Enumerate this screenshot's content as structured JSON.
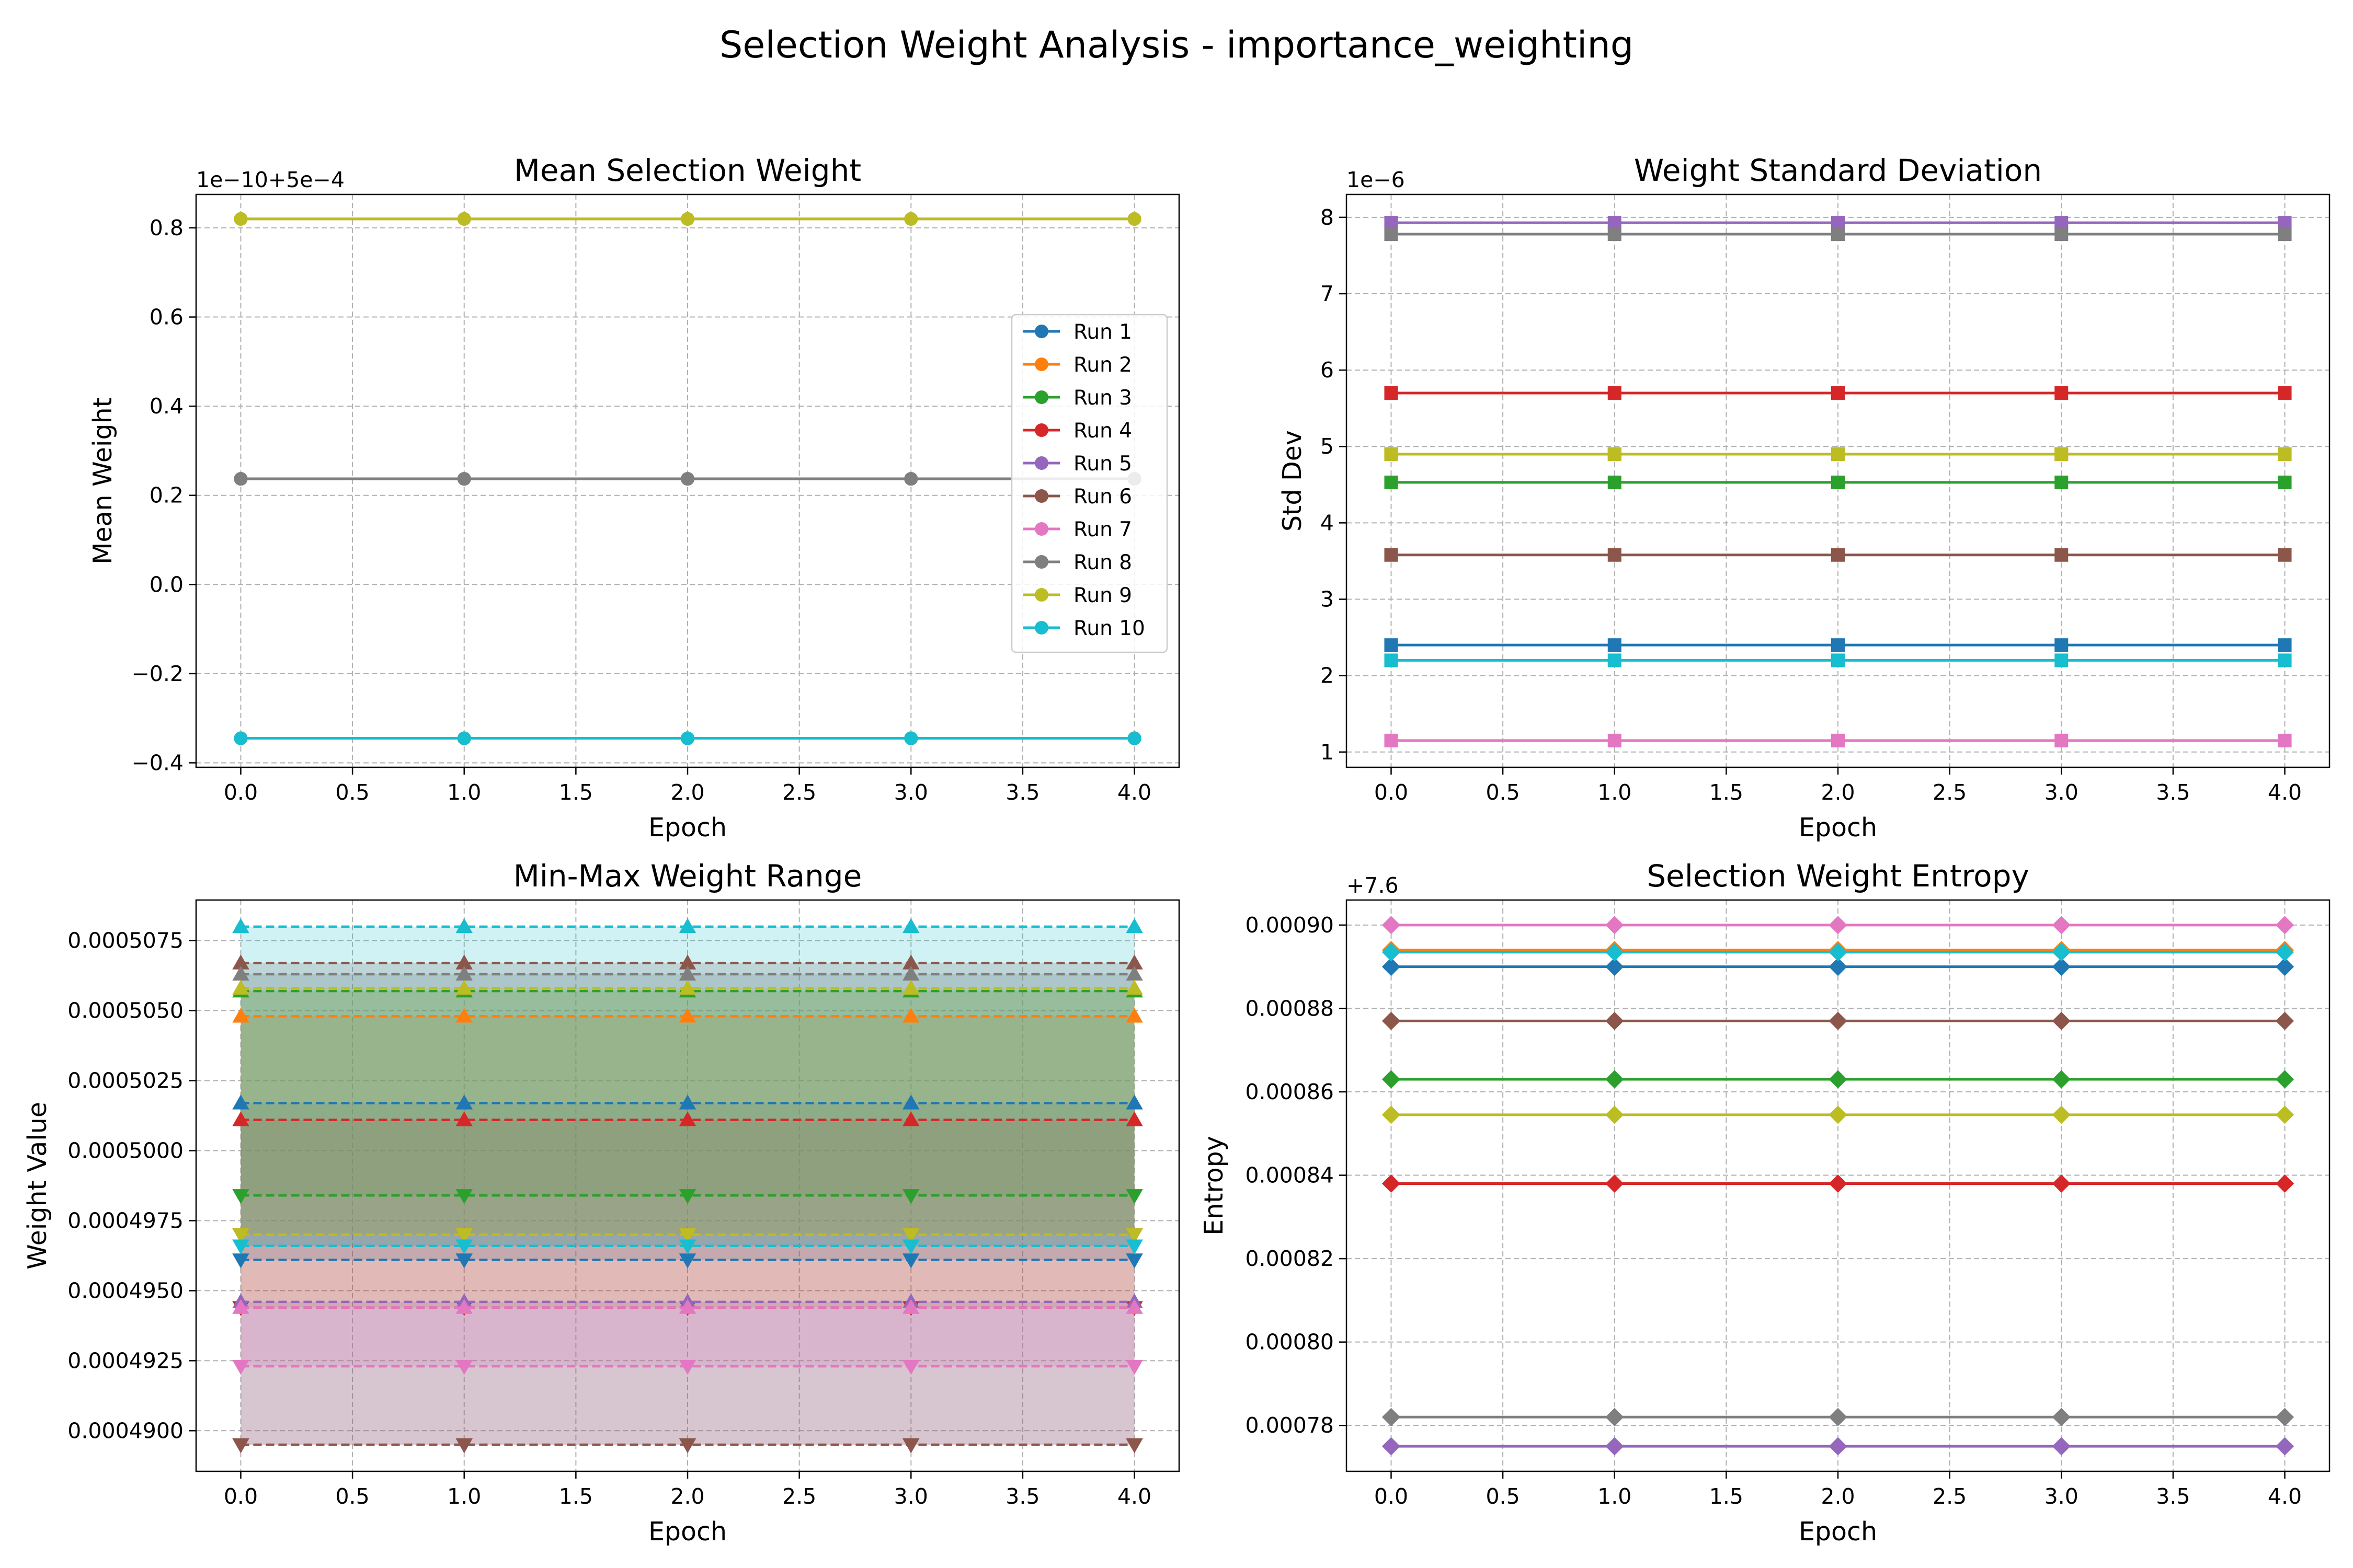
{
  "figure": {
    "title": "Selection Weight Analysis - importance_weighting"
  },
  "palette": [
    "#1f77b4",
    "#ff7f0e",
    "#2ca02c",
    "#d62728",
    "#9467bd",
    "#8c564b",
    "#e377c2",
    "#7f7f7f",
    "#bcbd22",
    "#17becf"
  ],
  "chart_data": [
    {
      "type": "line",
      "title": "Mean Selection Weight",
      "xlabel": "Epoch",
      "ylabel": "Mean Weight",
      "offset_text": "1e−10+5e−4",
      "marker": "circle",
      "x": [
        0,
        1,
        2,
        3,
        4
      ],
      "xticks": [
        "0.0",
        "0.5",
        "1.0",
        "1.5",
        "2.0",
        "2.5",
        "3.0",
        "3.5",
        "4.0"
      ],
      "yticks": [
        "−0.4",
        "−0.2",
        "0.0",
        "0.2",
        "0.4",
        "0.6",
        "0.8"
      ],
      "xlim": [
        -0.2,
        4.2
      ],
      "ylim": [
        -0.41,
        0.875
      ],
      "grid": true,
      "legend": "center-right",
      "series": [
        {
          "name": "Run 1",
          "values": [
            -0.345,
            -0.345,
            -0.345,
            -0.345,
            -0.345
          ]
        },
        {
          "name": "Run 2",
          "values": [
            0.82,
            0.82,
            0.82,
            0.82,
            0.82
          ]
        },
        {
          "name": "Run 3",
          "values": [
            -0.345,
            -0.345,
            -0.345,
            -0.345,
            -0.345
          ]
        },
        {
          "name": "Run 4",
          "values": [
            0.237,
            0.237,
            0.237,
            0.237,
            0.237
          ]
        },
        {
          "name": "Run 5",
          "values": [
            0.237,
            0.237,
            0.237,
            0.237,
            0.237
          ]
        },
        {
          "name": "Run 6",
          "values": [
            -0.345,
            -0.345,
            -0.345,
            -0.345,
            -0.345
          ]
        },
        {
          "name": "Run 7",
          "values": [
            0.82,
            0.82,
            0.82,
            0.82,
            0.82
          ]
        },
        {
          "name": "Run 8",
          "values": [
            0.237,
            0.237,
            0.237,
            0.237,
            0.237
          ]
        },
        {
          "name": "Run 9",
          "values": [
            0.82,
            0.82,
            0.82,
            0.82,
            0.82
          ]
        },
        {
          "name": "Run 10",
          "values": [
            -0.345,
            -0.345,
            -0.345,
            -0.345,
            -0.345
          ]
        }
      ]
    },
    {
      "type": "line",
      "title": "Weight Standard Deviation",
      "xlabel": "Epoch",
      "ylabel": "Std Dev",
      "offset_text": "1e−6",
      "marker": "square",
      "x": [
        0,
        1,
        2,
        3,
        4
      ],
      "xticks": [
        "0.0",
        "0.5",
        "1.0",
        "1.5",
        "2.0",
        "2.5",
        "3.0",
        "3.5",
        "4.0"
      ],
      "yticks": [
        "1",
        "2",
        "3",
        "4",
        "5",
        "6",
        "7",
        "8"
      ],
      "xlim": [
        -0.2,
        4.2
      ],
      "ylim": [
        0.8,
        8.3
      ],
      "grid": true,
      "series": [
        {
          "values": [
            2.4,
            2.4,
            2.4,
            2.4,
            2.4
          ]
        },
        {
          "values": [
            4.9,
            4.9,
            4.9,
            4.9,
            4.9
          ]
        },
        {
          "values": [
            4.53,
            4.53,
            4.53,
            4.53,
            4.53
          ]
        },
        {
          "values": [
            5.7,
            5.7,
            5.7,
            5.7,
            5.7
          ]
        },
        {
          "values": [
            7.93,
            7.93,
            7.93,
            7.93,
            7.93
          ]
        },
        {
          "values": [
            3.58,
            3.58,
            3.58,
            3.58,
            3.58
          ]
        },
        {
          "values": [
            1.15,
            1.15,
            1.15,
            1.15,
            1.15
          ]
        },
        {
          "values": [
            7.78,
            7.78,
            7.78,
            7.78,
            7.78
          ]
        },
        {
          "values": [
            4.9,
            4.9,
            4.9,
            4.9,
            4.9
          ]
        },
        {
          "values": [
            2.2,
            2.2,
            2.2,
            2.2,
            2.2
          ]
        }
      ]
    },
    {
      "type": "area",
      "title": "Min-Max Weight Range",
      "xlabel": "Epoch",
      "ylabel": "Weight Value",
      "x": [
        0,
        1,
        2,
        3,
        4
      ],
      "xticks": [
        "0.0",
        "0.5",
        "1.0",
        "1.5",
        "2.0",
        "2.5",
        "3.0",
        "3.5",
        "4.0"
      ],
      "yticks": [
        "0.0004900",
        "0.0004925",
        "0.0004950",
        "0.0004975",
        "0.0005000",
        "0.0005025",
        "0.0005050",
        "0.0005075"
      ],
      "xlim": [
        -0.2,
        4.2
      ],
      "ylim": [
        0.00048855,
        0.00050895
      ],
      "grid": true,
      "series": [
        {
          "min": 0.0004961,
          "max": 0.0005017
        },
        {
          "min": 0.000497,
          "max": 0.0005048
        },
        {
          "min": 0.0004984,
          "max": 0.0005057
        },
        {
          "min": 0.0004944,
          "max": 0.0005011
        },
        {
          "min": 0.0004895,
          "max": 0.0004946
        },
        {
          "min": 0.0004895,
          "max": 0.0005067
        },
        {
          "min": 0.0004923,
          "max": 0.0004944
        },
        {
          "min": 0.0004966,
          "max": 0.0005063
        },
        {
          "min": 0.000497,
          "max": 0.0005058
        },
        {
          "min": 0.0004966,
          "max": 0.000508
        }
      ]
    },
    {
      "type": "line",
      "title": "Selection Weight Entropy",
      "xlabel": "Epoch",
      "ylabel": "Entropy",
      "offset_text": "+7.6",
      "marker": "diamond",
      "x": [
        0,
        1,
        2,
        3,
        4
      ],
      "xticks": [
        "0.0",
        "0.5",
        "1.0",
        "1.5",
        "2.0",
        "2.5",
        "3.0",
        "3.5",
        "4.0"
      ],
      "yticks": [
        "0.00078",
        "0.00080",
        "0.00082",
        "0.00084",
        "0.00086",
        "0.00088",
        "0.00090"
      ],
      "xlim": [
        -0.2,
        4.2
      ],
      "ylim": [
        0.000769,
        0.000906
      ],
      "grid": true,
      "series": [
        {
          "values": [
            0.00089,
            0.00089,
            0.00089,
            0.00089,
            0.00089
          ]
        },
        {
          "values": [
            0.000894,
            0.000894,
            0.000894,
            0.000894,
            0.000894
          ]
        },
        {
          "values": [
            0.000863,
            0.000863,
            0.000863,
            0.000863,
            0.000863
          ]
        },
        {
          "values": [
            0.000838,
            0.000838,
            0.000838,
            0.000838,
            0.000838
          ]
        },
        {
          "values": [
            0.000775,
            0.000775,
            0.000775,
            0.000775,
            0.000775
          ]
        },
        {
          "values": [
            0.000877,
            0.000877,
            0.000877,
            0.000877,
            0.000877
          ]
        },
        {
          "values": [
            0.0009,
            0.0009,
            0.0009,
            0.0009,
            0.0009
          ]
        },
        {
          "values": [
            0.000782,
            0.000782,
            0.000782,
            0.000782,
            0.000782
          ]
        },
        {
          "values": [
            0.0008545,
            0.0008545,
            0.0008545,
            0.0008545,
            0.0008545
          ]
        },
        {
          "values": [
            0.0008935,
            0.0008935,
            0.0008935,
            0.0008935,
            0.0008935
          ]
        }
      ]
    }
  ]
}
